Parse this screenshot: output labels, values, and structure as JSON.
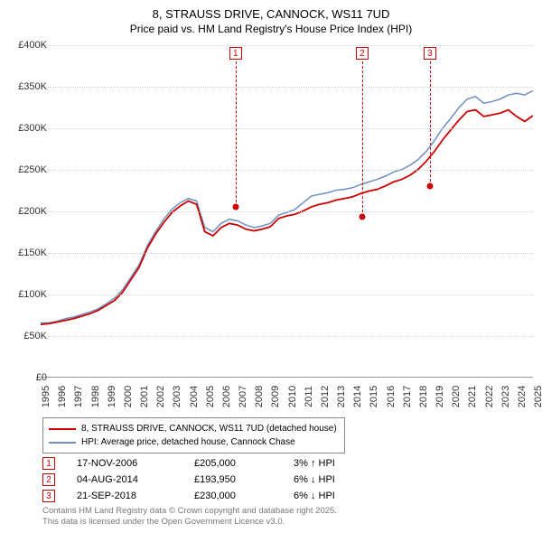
{
  "title": {
    "line1": "8, STRAUSS DRIVE, CANNOCK, WS11 7UD",
    "line2": "Price paid vs. HM Land Registry's House Price Index (HPI)"
  },
  "chart": {
    "type": "line",
    "x_years": [
      1995,
      1996,
      1997,
      1998,
      1999,
      2000,
      2001,
      2002,
      2003,
      2004,
      2005,
      2006,
      2007,
      2008,
      2009,
      2010,
      2011,
      2012,
      2013,
      2014,
      2015,
      2016,
      2017,
      2018,
      2019,
      2020,
      2021,
      2022,
      2023,
      2024,
      2025
    ],
    "ylim": [
      0,
      400000
    ],
    "ytick_step": 50000,
    "ytick_labels": [
      "£0",
      "£50K",
      "£100K",
      "£150K",
      "£200K",
      "£250K",
      "£300K",
      "£350K",
      "£400K"
    ],
    "background_color": "#ffffff",
    "grid_color": "#d0d0d0",
    "series": [
      {
        "name": "HPI: Average price, detached house, Cannock Chase",
        "color": "#6f8fbf",
        "width": 1.5,
        "values": [
          65,
          65,
          67,
          70,
          72,
          75,
          78,
          82,
          88,
          95,
          105,
          120,
          135,
          158,
          175,
          190,
          202,
          210,
          215,
          212,
          180,
          175,
          185,
          190,
          188,
          183,
          180,
          182,
          185,
          195,
          198,
          202,
          210,
          218,
          220,
          222,
          225,
          226,
          228,
          232,
          235,
          238,
          242,
          247,
          250,
          255,
          262,
          272,
          285,
          300,
          312,
          325,
          335,
          338,
          330,
          332,
          335,
          340,
          342,
          340,
          345
        ]
      },
      {
        "name": "8, STRAUSS DRIVE, CANNOCK, WS11 7UD (detached house)",
        "color": "#cc0000",
        "width": 1.8,
        "values": [
          63,
          64,
          66,
          68,
          70,
          73,
          76,
          80,
          86,
          92,
          102,
          117,
          132,
          155,
          172,
          186,
          198,
          206,
          212,
          208,
          175,
          170,
          180,
          185,
          183,
          178,
          176,
          178,
          181,
          191,
          194,
          196,
          200,
          205,
          208,
          210,
          213,
          215,
          217,
          221,
          224,
          226,
          230,
          235,
          238,
          243,
          250,
          260,
          272,
          286,
          298,
          310,
          320,
          322,
          314,
          316,
          318,
          322,
          314,
          308,
          315
        ]
      }
    ]
  },
  "markers": [
    {
      "n": "1",
      "year": 2006.88,
      "price": 205000,
      "date": "17-NOV-2006",
      "price_label": "£205,000",
      "pct": "3%",
      "dir": "↑",
      "rel": "HPI"
    },
    {
      "n": "2",
      "year": 2014.59,
      "price": 193950,
      "date": "04-AUG-2014",
      "price_label": "£193,950",
      "pct": "6%",
      "dir": "↓",
      "rel": "HPI"
    },
    {
      "n": "3",
      "year": 2018.72,
      "price": 230000,
      "date": "21-SEP-2018",
      "price_label": "£230,000",
      "pct": "6%",
      "dir": "↓",
      "rel": "HPI"
    }
  ],
  "legend": {
    "items": [
      {
        "color": "#cc0000",
        "label": "8, STRAUSS DRIVE, CANNOCK, WS11 7UD (detached house)"
      },
      {
        "color": "#6f8fbf",
        "label": "HPI: Average price, detached house, Cannock Chase"
      }
    ]
  },
  "footer": {
    "line1": "Contains HM Land Registry data © Crown copyright and database right 2025.",
    "line2": "This data is licensed under the Open Government Licence v3.0."
  }
}
